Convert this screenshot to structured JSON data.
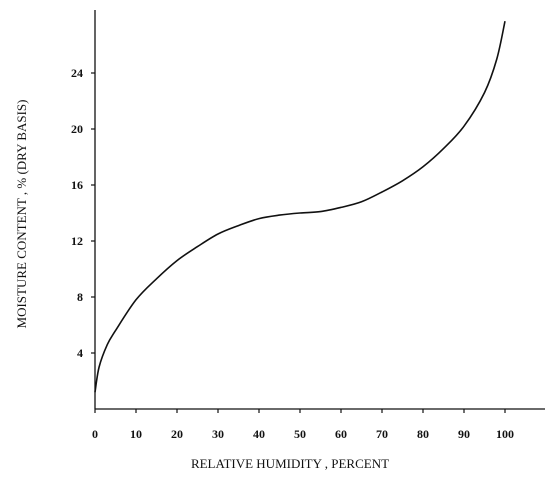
{
  "chart_data": {
    "type": "line",
    "xlabel": "RELATIVE HUMIDITY , PERCENT",
    "ylabel": "MOISTURE CONTENT , % (DRY BASIS)",
    "xlim": [
      0,
      110
    ],
    "ylim": [
      0,
      28
    ],
    "x_ticks": [
      0,
      10,
      20,
      30,
      40,
      50,
      60,
      70,
      80,
      90,
      100
    ],
    "y_ticks": [
      4,
      8,
      12,
      16,
      20,
      24
    ],
    "grid": false,
    "series": [
      {
        "points": [
          [
            0,
            1.2
          ],
          [
            1,
            3.0
          ],
          [
            3,
            4.6
          ],
          [
            5,
            5.6
          ],
          [
            10,
            7.8
          ],
          [
            15,
            9.3
          ],
          [
            20,
            10.6
          ],
          [
            25,
            11.6
          ],
          [
            30,
            12.5
          ],
          [
            35,
            13.1
          ],
          [
            40,
            13.6
          ],
          [
            45,
            13.85
          ],
          [
            50,
            14.0
          ],
          [
            55,
            14.1
          ],
          [
            60,
            14.4
          ],
          [
            65,
            14.8
          ],
          [
            70,
            15.5
          ],
          [
            75,
            16.3
          ],
          [
            80,
            17.3
          ],
          [
            85,
            18.6
          ],
          [
            90,
            20.2
          ],
          [
            95,
            22.6
          ],
          [
            98,
            25.0
          ],
          [
            100,
            27.7
          ]
        ]
      }
    ]
  }
}
